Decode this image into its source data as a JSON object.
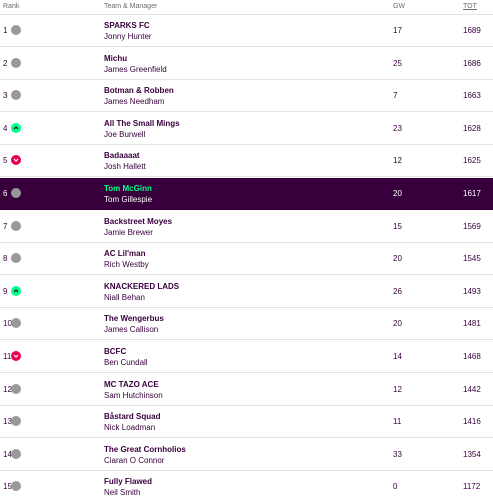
{
  "header": {
    "rank": "Rank",
    "team": "Team & Manager",
    "gw": "GW",
    "tot": "TOT"
  },
  "colors": {
    "brand": "#37003c",
    "up": "#00ff87",
    "down": "#e90052",
    "same": "#999999"
  },
  "rows": [
    {
      "rank": "1",
      "movement": "same",
      "team": "SPARKS FC",
      "manager": "Jonny Hunter",
      "gw": "17",
      "tot": "1689"
    },
    {
      "rank": "2",
      "movement": "same",
      "team": "Michu",
      "manager": "James Greenfield",
      "gw": "25",
      "tot": "1686"
    },
    {
      "rank": "3",
      "movement": "same",
      "team": "Botman & Robben",
      "manager": "James Needham",
      "gw": "7",
      "tot": "1663"
    },
    {
      "rank": "4",
      "movement": "up",
      "team": "All The Small Mings",
      "manager": "Joe Burwell",
      "gw": "23",
      "tot": "1628"
    },
    {
      "rank": "5",
      "movement": "down",
      "team": "Badaaaat",
      "manager": "Josh Hallett",
      "gw": "12",
      "tot": "1625"
    },
    {
      "rank": "6",
      "movement": "same",
      "team": "Tom McGinn",
      "manager": "Tom Gillespie",
      "gw": "20",
      "tot": "1617",
      "highlight": true
    },
    {
      "rank": "7",
      "movement": "same",
      "team": "Backstreet Moyes",
      "manager": "Jamie Brewer",
      "gw": "15",
      "tot": "1569"
    },
    {
      "rank": "8",
      "movement": "same",
      "team": "AC Lil'man",
      "manager": "Rich Westby",
      "gw": "20",
      "tot": "1545"
    },
    {
      "rank": "9",
      "movement": "up",
      "team": "KNACKERED LADS",
      "manager": "Niall Behan",
      "gw": "26",
      "tot": "1493"
    },
    {
      "rank": "10",
      "movement": "same",
      "team": "The Wengerbus",
      "manager": "James Callison",
      "gw": "20",
      "tot": "1481"
    },
    {
      "rank": "11",
      "movement": "down",
      "team": "BCFC",
      "manager": "Ben Cundall",
      "gw": "14",
      "tot": "1468"
    },
    {
      "rank": "12",
      "movement": "same",
      "team": "MC TAZO ACE",
      "manager": "Sam Hutchinson",
      "gw": "12",
      "tot": "1442"
    },
    {
      "rank": "13",
      "movement": "same",
      "team": "Båstard Squad",
      "manager": "Nick Loadman",
      "gw": "11",
      "tot": "1416"
    },
    {
      "rank": "14",
      "movement": "same",
      "team": "The Great Cornholios",
      "manager": "Ciaran O Connor",
      "gw": "33",
      "tot": "1354"
    },
    {
      "rank": "15",
      "movement": "same",
      "team": "Fully Flawed",
      "manager": "Neil Smith",
      "gw": "0",
      "tot": "1172"
    }
  ]
}
